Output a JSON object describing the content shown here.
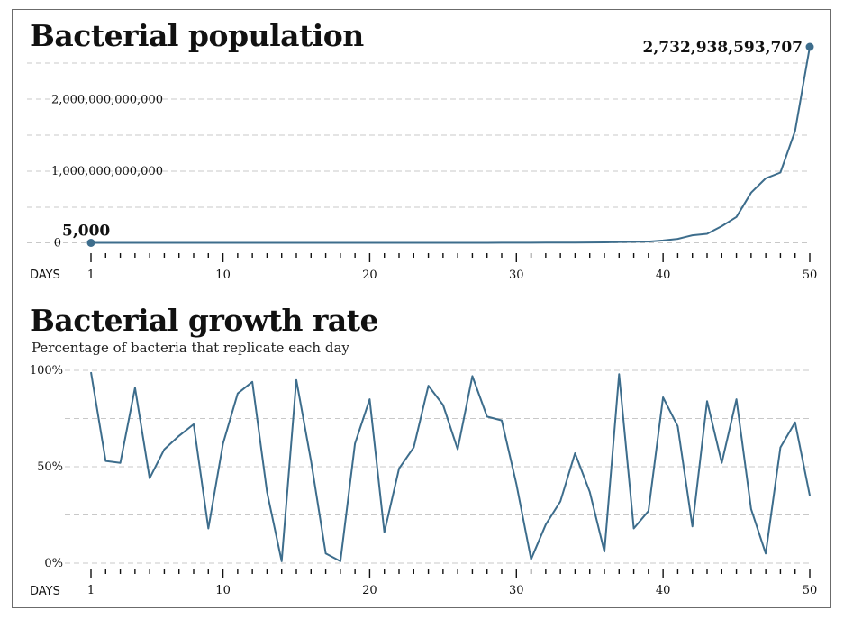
{
  "colors": {
    "line": "#3d6d8c",
    "grid": "#c8c8c8",
    "text": "#111111"
  },
  "chart_data": [
    {
      "type": "line",
      "title": "Bacterial population",
      "subtitle": "",
      "xlabel": "DAYS",
      "ylabel": "",
      "xlim": [
        1,
        50
      ],
      "ylim": [
        0,
        2732938593707
      ],
      "xticks": [
        1,
        10,
        20,
        30,
        40,
        50
      ],
      "xtick_labels": [
        "1",
        "10",
        "20",
        "30",
        "40",
        "50"
      ],
      "yticks": [
        0,
        1000000000000,
        2000000000000
      ],
      "ytick_labels": [
        "0",
        "1,000,000,000,000",
        "2,000,000,000,000"
      ],
      "grid": true,
      "annotations": [
        {
          "x": 1,
          "y": 5000,
          "label": "5,000"
        },
        {
          "x": 50,
          "y": 2732938593707,
          "label": "2,732,938,593,707"
        }
      ],
      "series": [
        {
          "x": [
            1,
            2,
            3,
            4,
            5,
            6,
            7,
            8,
            9,
            10,
            11,
            12,
            13,
            14,
            15,
            16,
            17,
            18,
            19,
            20,
            21,
            22,
            23,
            24,
            25,
            26,
            27,
            28,
            29,
            30,
            31,
            32,
            33,
            34,
            35,
            36,
            37,
            38,
            39,
            40,
            41,
            42,
            43,
            44,
            45,
            46,
            47,
            48,
            49,
            50
          ],
          "values": [
            5000,
            7650,
            11628,
            22166,
            31861,
            50700,
            83500,
            143600,
            169500,
            274900,
            516800,
            1001100,
            1364000,
            1377600,
            2686300,
            4252800,
            4465400,
            4511100,
            7308000,
            13519700,
            15666000,
            23350000,
            32800000,
            63000000,
            114200000,
            181300000,
            356300000,
            627500000,
            1092600000,
            1595100000,
            1627000000,
            1952000000,
            2567000000,
            4030000000,
            5540000000,
            5870000000,
            11620000000,
            13700000000,
            17400000000,
            32300000000,
            55100000000,
            105400000000,
            126000000000,
            232000000000,
            360000000000,
            700000000000,
            900000000000,
            980000000000,
            1560000000000,
            2732938593707
          ]
        }
      ]
    },
    {
      "type": "line",
      "title": "Bacterial growth rate",
      "subtitle": "Percentage of bacteria that replicate each day",
      "xlabel": "DAYS",
      "ylabel": "",
      "xlim": [
        1,
        50
      ],
      "ylim": [
        0,
        100
      ],
      "xticks": [
        1,
        10,
        20,
        30,
        40,
        50
      ],
      "xtick_labels": [
        "1",
        "10",
        "20",
        "30",
        "40",
        "50"
      ],
      "yticks": [
        0,
        50,
        100
      ],
      "ytick_labels": [
        "0%",
        "50%",
        "100%"
      ],
      "grid": true,
      "series": [
        {
          "x": [
            1,
            2,
            3,
            4,
            5,
            6,
            7,
            8,
            9,
            10,
            11,
            12,
            13,
            14,
            15,
            16,
            17,
            18,
            19,
            20,
            21,
            22,
            23,
            24,
            25,
            26,
            27,
            28,
            29,
            30,
            31,
            32,
            33,
            34,
            35,
            36,
            37,
            38,
            39,
            40,
            41,
            42,
            43,
            44,
            45,
            46,
            47,
            48,
            49,
            50
          ],
          "values": [
            99,
            53,
            52,
            91,
            44,
            59,
            66,
            72,
            18,
            62,
            88,
            94,
            37,
            1,
            95,
            53,
            5,
            1,
            62,
            85,
            16,
            49,
            60,
            92,
            82,
            59,
            97,
            76,
            74,
            41,
            2,
            20,
            32,
            57,
            37,
            6,
            98,
            18,
            27,
            86,
            71,
            19,
            84,
            52,
            85,
            28,
            5,
            60,
            73,
            35
          ]
        }
      ]
    }
  ]
}
